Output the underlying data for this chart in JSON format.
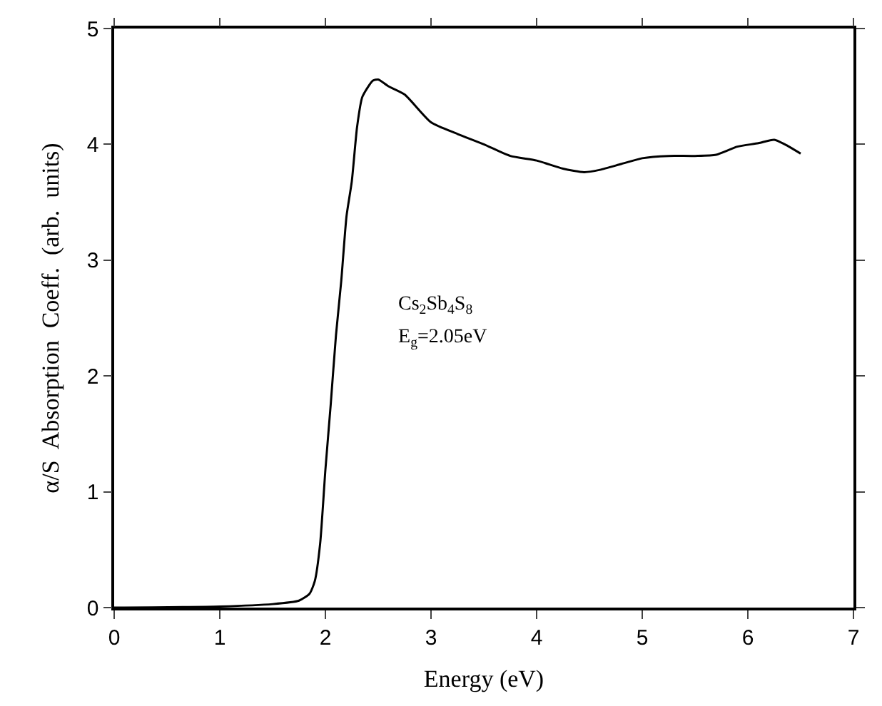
{
  "chart_data": {
    "type": "line",
    "xlabel": "Energy (eV)",
    "ylabel": "α/S  Absorption  Coeff.  (arb.  units)",
    "x": [
      0,
      1.0,
      1.5,
      1.75,
      1.85,
      1.9,
      1.95,
      2.0,
      2.05,
      2.1,
      2.15,
      2.2,
      2.25,
      2.3,
      2.35,
      2.45,
      2.5,
      2.6,
      2.75,
      3.0,
      3.25,
      3.5,
      3.75,
      4.0,
      4.25,
      4.45,
      4.6,
      4.8,
      5.0,
      5.25,
      5.5,
      5.7,
      5.9,
      6.1,
      6.25,
      6.35,
      6.5
    ],
    "series": [
      {
        "color": "#000000",
        "values": [
          0,
          0.01,
          0.03,
          0.06,
          0.12,
          0.23,
          0.55,
          1.19,
          1.75,
          2.35,
          2.82,
          3.38,
          3.68,
          4.15,
          4.41,
          4.55,
          4.56,
          4.5,
          4.43,
          4.19,
          4.09,
          4.0,
          3.9,
          3.86,
          3.79,
          3.76,
          3.78,
          3.83,
          3.88,
          3.9,
          3.9,
          3.91,
          3.98,
          4.01,
          4.04,
          4.0,
          3.92
        ]
      }
    ],
    "xlim": [
      0,
      7
    ],
    "ylim": [
      0,
      5
    ],
    "xticks": [
      0,
      1,
      2,
      3,
      4,
      5,
      6,
      7
    ],
    "yticks": [
      0,
      1,
      2,
      3,
      4,
      5
    ],
    "marker": "none",
    "line_style": "solid",
    "annotations": [
      "Cs$_{2}$Sb$_{4}$S$_{8}$",
      "E$_{g}$=2.05eV"
    ]
  }
}
